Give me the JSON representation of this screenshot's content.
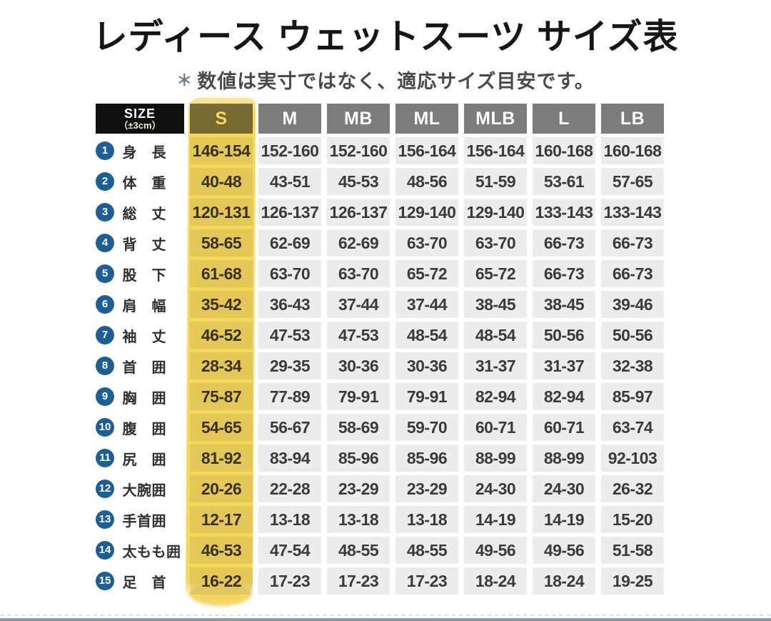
{
  "page": {
    "title": "レディース ウェットスーツ サイズ表",
    "note_mark": "＊",
    "note": "数値は実寸ではなく、適応サイズ目安です。"
  },
  "table": {
    "corner": {
      "line1": "SIZE",
      "line2": "（±3cm）"
    },
    "columns": [
      "S",
      "M",
      "MB",
      "ML",
      "MLB",
      "L",
      "LB"
    ],
    "highlighted_column": "S",
    "rows": [
      {
        "num": "1",
        "label": "身　長",
        "values": [
          "146-154",
          "152-160",
          "152-160",
          "156-164",
          "156-164",
          "160-168",
          "160-168"
        ]
      },
      {
        "num": "2",
        "label": "体　重",
        "values": [
          "40-48",
          "43-51",
          "45-53",
          "48-56",
          "51-59",
          "53-61",
          "57-65"
        ]
      },
      {
        "num": "3",
        "label": "総　丈",
        "values": [
          "120-131",
          "126-137",
          "126-137",
          "129-140",
          "129-140",
          "133-143",
          "133-143"
        ]
      },
      {
        "num": "4",
        "label": "背　丈",
        "values": [
          "58-65",
          "62-69",
          "62-69",
          "63-70",
          "63-70",
          "66-73",
          "66-73"
        ]
      },
      {
        "num": "5",
        "label": "股　下",
        "values": [
          "61-68",
          "63-70",
          "63-70",
          "65-72",
          "65-72",
          "66-73",
          "66-73"
        ]
      },
      {
        "num": "6",
        "label": "肩　幅",
        "values": [
          "35-42",
          "36-43",
          "37-44",
          "37-44",
          "38-45",
          "38-45",
          "39-46"
        ]
      },
      {
        "num": "7",
        "label": "袖　丈",
        "values": [
          "46-52",
          "47-53",
          "47-53",
          "48-54",
          "48-54",
          "50-56",
          "50-56"
        ]
      },
      {
        "num": "8",
        "label": "首　囲",
        "values": [
          "28-34",
          "29-35",
          "30-36",
          "30-36",
          "31-37",
          "31-37",
          "32-38"
        ]
      },
      {
        "num": "9",
        "label": "胸　囲",
        "values": [
          "75-87",
          "77-89",
          "79-91",
          "79-91",
          "82-94",
          "82-94",
          "85-97"
        ]
      },
      {
        "num": "10",
        "label": "腹　囲",
        "values": [
          "54-65",
          "56-67",
          "58-69",
          "59-70",
          "60-71",
          "60-71",
          "63-74"
        ]
      },
      {
        "num": "11",
        "label": "尻　囲",
        "values": [
          "81-92",
          "83-94",
          "85-96",
          "85-96",
          "88-99",
          "88-99",
          "92-103"
        ]
      },
      {
        "num": "12",
        "label": "大腕囲",
        "values": [
          "20-26",
          "22-28",
          "23-29",
          "23-29",
          "24-30",
          "24-30",
          "26-32"
        ]
      },
      {
        "num": "13",
        "label": "手首囲",
        "values": [
          "12-17",
          "13-18",
          "13-18",
          "13-18",
          "14-19",
          "14-19",
          "15-20"
        ]
      },
      {
        "num": "14",
        "label": "太もも囲",
        "values": [
          "46-53",
          "47-54",
          "48-55",
          "48-55",
          "49-56",
          "49-56",
          "51-58"
        ]
      },
      {
        "num": "15",
        "label": "足　首",
        "values": [
          "16-22",
          "17-23",
          "17-23",
          "17-23",
          "18-24",
          "18-24",
          "19-25"
        ]
      }
    ]
  },
  "colors": {
    "highlight_yellow": "#F6D75E",
    "header_gray": "#7C7C7C",
    "header_black": "#101010",
    "cell_gray": "#ECECEC",
    "number_circle_blue": "#1D5E96",
    "text_dark": "#3B3B3B"
  }
}
